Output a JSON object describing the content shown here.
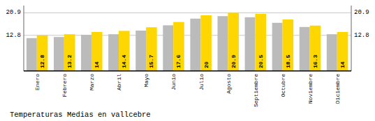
{
  "chart_data": {
    "type": "bar",
    "title": "Temperaturas Medias en vallcebre",
    "categories": [
      "Enero",
      "Febrero",
      "Marzo",
      "Abril",
      "Mayo",
      "Junio",
      "Julio",
      "Agosto",
      "Septiembre",
      "Octubre",
      "Noviembre",
      "Diciembre"
    ],
    "series": [
      {
        "color": "#BBBBBB",
        "values": [
          11.8,
          12.2,
          13.0,
          13.2,
          14.5,
          16.4,
          18.8,
          19.7,
          19.3,
          17.3,
          15.8,
          13.2
        ]
      },
      {
        "color": "#FFD700",
        "data_labels": true,
        "values": [
          12.8,
          13.2,
          14.0,
          14.4,
          15.7,
          17.6,
          20.0,
          20.9,
          20.5,
          18.5,
          16.3,
          14.0
        ]
      }
    ],
    "ylim": [
      0,
      23.5
    ],
    "yticks": [
      12.8,
      20.9
    ],
    "grid": true
  }
}
